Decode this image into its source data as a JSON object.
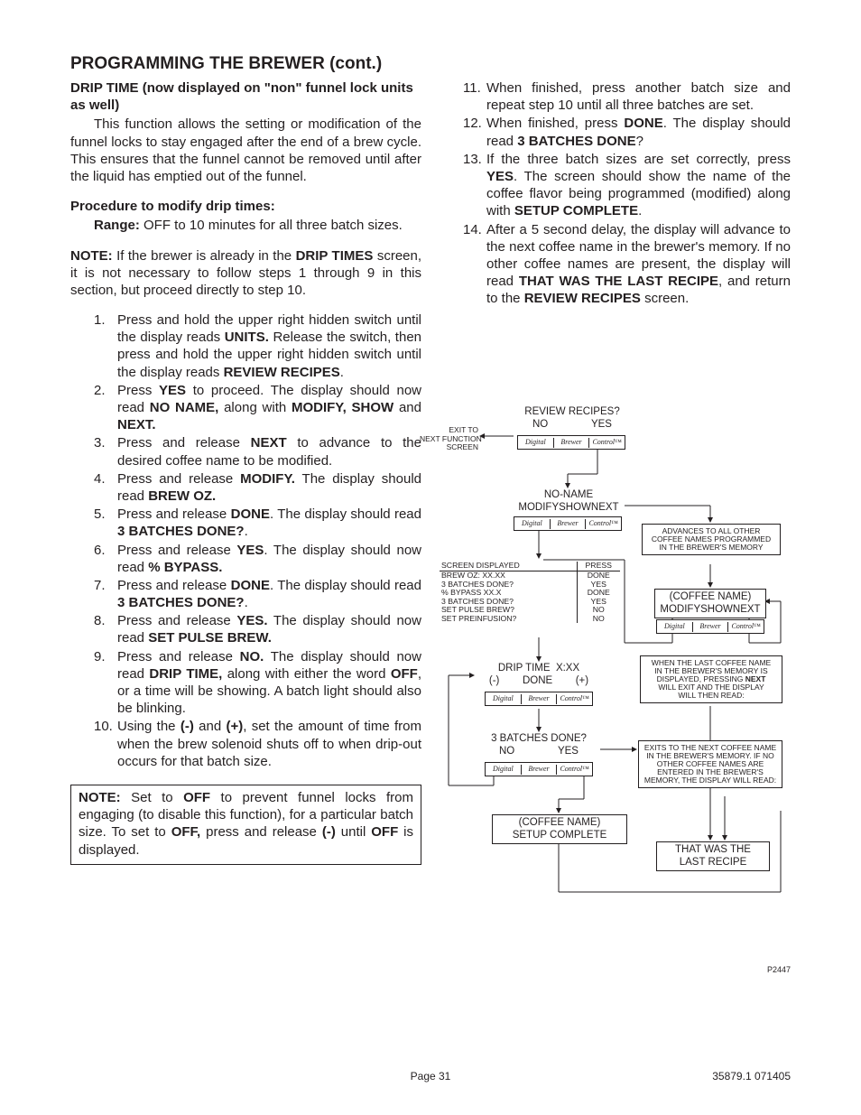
{
  "title": "PROGRAMMING THE BREWER (cont.)",
  "left": {
    "h1": "DRIP TIME (now displayed on \"non\" funnel lock units as well)",
    "p1": "This function allows the setting or modification of the funnel locks to stay engaged after the end of a brew cycle. This ensures that the funnel cannot be removed until after the liquid has emptied out of the funnel.",
    "h2": "Procedure to modify drip times:",
    "range_label": "Range:",
    "range_text": " OFF to 10 minutes for all three batch sizes.",
    "note_label": "NOTE:",
    "note_text": " If the brewer is already in the ",
    "note_bold": "DRIP TIMES",
    "note_after": " screen, it is not necessary to follow steps 1 through 9 in this section, but proceed directly to step 10.",
    "steps": [
      {
        "n": "1.",
        "t": "Press and hold the upper right hidden switch until the display reads <b>UNITS.</b> Release the switch, then press and hold the upper right hidden switch until the display reads <b>REVIEW RECIPES</b>."
      },
      {
        "n": "2.",
        "t": "Press <b>YES</b> to proceed. The display should now read <b>NO NAME,</b> along with <b>MODIFY, SHOW</b> and <b>NEXT.</b>"
      },
      {
        "n": "3.",
        "t": "Press and release <b>NEXT</b> to advance to the desired coffee name to be modified."
      },
      {
        "n": "4.",
        "t": "Press and release <b>MODIFY.</b> The display should read <b>BREW OZ.</b>"
      },
      {
        "n": "5.",
        "t": "Press and release <b>DONE</b>. The display should read <b>3 BATCHES DONE?</b>."
      },
      {
        "n": "6.",
        "t": "Press and release <b>YES</b>. The display should now read <b>% BYPASS.</b>"
      },
      {
        "n": "7.",
        "t": "Press and release <b>DONE</b>. The display should read <b>3 BATCHES DONE?</b>."
      },
      {
        "n": "8.",
        "t": "Press and release <b>YES.</b> The display should now read <b>SET PULSE BREW.</b>"
      },
      {
        "n": "9.",
        "t": "Press and release <b>NO.</b> The display should now read <b>DRIP TIME,</b> along with either the word <b>OFF</b>, or a time will be showing. A batch light should also be blinking."
      },
      {
        "n": "10.",
        "t": "Using the <b>(-)</b> and <b>(+)</b>, set the amount of time from when the brew solenoid shuts off to when drip-out occurs for that batch size."
      }
    ],
    "boxnote": "<b>NOTE:</b> Set to <b>OFF</b> to prevent funnel locks from engaging (to disable this function), for a particular batch size. To set to <b>OFF,</b> press and release <b>(-)</b> until <b>OFF</b> is displayed."
  },
  "right": {
    "steps": [
      {
        "n": "11.",
        "t": "When finished, press another batch size and repeat step 10 until all three batches are set."
      },
      {
        "n": "12.",
        "t": "When finished, press <b>DONE</b>. The display should read <b>3 BATCHES DONE</b>?"
      },
      {
        "n": "13.",
        "t": "If the three batch sizes are set correctly, press <b>YES</b>. The screen should show the name of the coffee flavor being programmed (modified) along with <b>SETUP COMPLETE</b>."
      },
      {
        "n": "14.",
        "t": "After a 5 second delay, the display will advance to the next coffee name in the brewer's memory. If no other coffee names are present, the display will read <b>THAT WAS THE LAST RECIPE</b>, and return to the <b>REVIEW RECIPES</b> screen."
      }
    ]
  },
  "diagram": {
    "box1": "REVIEW RECIPES?\nNO               YES",
    "box2": "NO-NAME\nMODIFYSHOWNEXT",
    "box3": "(COFFEE NAME)\nMODIFYSHOWNEXT",
    "box4": "DRIP TIME  X:XX\n(-)        DONE        (+)",
    "box5": "3 BATCHES DONE?\nNO               YES",
    "box6": "(COFFEE NAME)\nSETUP COMPLETE",
    "box7": "THAT WAS THE\nLAST RECIPE",
    "exit": "EXIT TO\nNEXT FUNCTION\nSCREEN",
    "adv": "ADVANCES TO ALL OTHER\nCOFFEE NAMES PROGRAMMED\nIN THE BREWER'S MEMORY",
    "exit2": "WHEN THE LAST COFFEE NAME\nIN THE BREWER'S MEMORY IS\nDISPLAYED, PRESSING <b>NEXT</b>\nWILL EXIT AND THE DISPLAY\nWILL THEN READ:",
    "exit3": "EXITS TO THE NEXT COFFEE NAME\nIN THE BREWER'S MEMORY. IF NO\nOTHER COFFEE NAMES ARE\nENTERED IN THE BREWER'S\nMEMORY, THE DISPLAY WILL READ:",
    "tbl_h1": "SCREEN DISPLAYED",
    "tbl_h2": "PRESS",
    "tbl_rows": [
      [
        "BREW OZ: XX.XX",
        "DONE"
      ],
      [
        "3 BATCHES DONE?",
        "YES"
      ],
      [
        "% BYPASS XX.X",
        "DONE"
      ],
      [
        "3 BATCHES DONE?",
        "YES"
      ],
      [
        "SET PULSE BREW?",
        "NO"
      ],
      [
        "SET PREINFUSION?",
        "NO"
      ]
    ],
    "dbc": [
      "Digital",
      "Brewer",
      "Control™"
    ],
    "ref": "P2447"
  },
  "footer": {
    "page": "Page 31",
    "doc": "35879.1 071405"
  }
}
